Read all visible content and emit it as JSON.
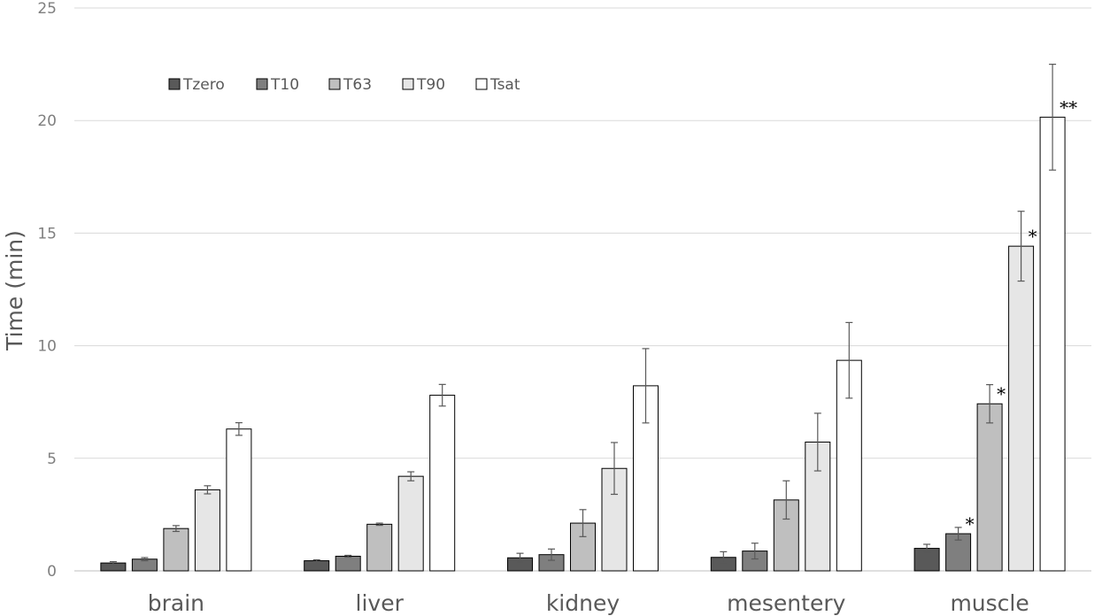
{
  "chart_data": {
    "type": "bar",
    "title": "",
    "xlabel": "",
    "ylabel": "Time (min)",
    "ylim": [
      0,
      25
    ],
    "yticks": [
      0,
      5,
      10,
      15,
      20,
      25
    ],
    "grid": true,
    "legend_position": "top-left",
    "categories": [
      "brain",
      "liver",
      "kidney",
      "mesentery",
      "muscle"
    ],
    "series": [
      {
        "name": "Tzero",
        "color": "#595959",
        "values": [
          0.35,
          0.45,
          0.58,
          0.6,
          1.0
        ],
        "errors": [
          0.06,
          0.04,
          0.2,
          0.25,
          0.18
        ],
        "annotations": [
          "",
          "",
          "",
          "",
          ""
        ]
      },
      {
        "name": "T10",
        "color": "#7f7f7f",
        "values": [
          0.52,
          0.65,
          0.72,
          0.88,
          1.65
        ],
        "errors": [
          0.07,
          0.04,
          0.25,
          0.35,
          0.28
        ],
        "annotations": [
          "",
          "",
          "",
          "",
          "*"
        ]
      },
      {
        "name": "T63",
        "color": "#bfbfbf",
        "values": [
          1.88,
          2.07,
          2.12,
          3.15,
          7.42
        ],
        "errors": [
          0.13,
          0.05,
          0.6,
          0.85,
          0.85
        ],
        "annotations": [
          "",
          "",
          "",
          "",
          "*"
        ]
      },
      {
        "name": "T90",
        "color": "#e6e6e6",
        "values": [
          3.6,
          4.2,
          4.55,
          5.72,
          14.42
        ],
        "errors": [
          0.18,
          0.2,
          1.15,
          1.28,
          1.55
        ],
        "annotations": [
          "",
          "",
          "",
          "",
          "*"
        ]
      },
      {
        "name": "Tsat",
        "color": "#ffffff",
        "values": [
          6.3,
          7.8,
          8.22,
          9.35,
          20.15
        ],
        "errors": [
          0.28,
          0.48,
          1.65,
          1.68,
          2.35
        ],
        "annotations": [
          "",
          "",
          "",
          "",
          "**"
        ]
      }
    ]
  }
}
